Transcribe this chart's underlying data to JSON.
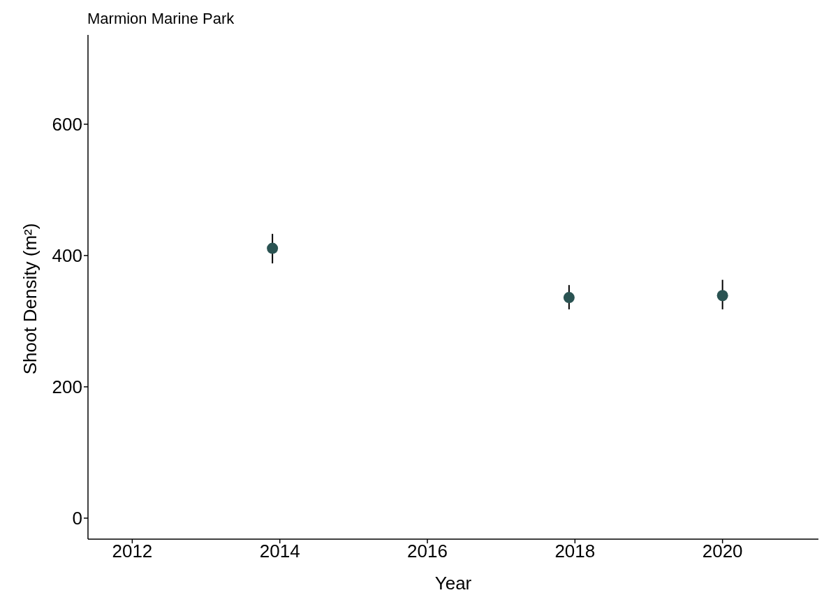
{
  "chart_data": {
    "type": "scatter",
    "title": "Marmion Marine Park",
    "xlabel": "Year",
    "ylabel": "Shoot Density (m²)",
    "x": [
      2013.9,
      2017.92,
      2020
    ],
    "series": [
      {
        "color": "#2a5352",
        "values": [
          411,
          336,
          339
        ],
        "errors": [
          [
            388,
            433
          ],
          [
            318,
            355
          ],
          [
            318,
            363
          ]
        ]
      }
    ],
    "xlim": [
      2011.4,
      2021.3
    ],
    "xticks": [
      2012,
      2014,
      2016,
      2018,
      2020
    ],
    "ylim": [
      -32,
      736
    ],
    "yticks": [
      0,
      200,
      400,
      600
    ],
    "grid": false,
    "legend": false,
    "marker": "circle"
  }
}
